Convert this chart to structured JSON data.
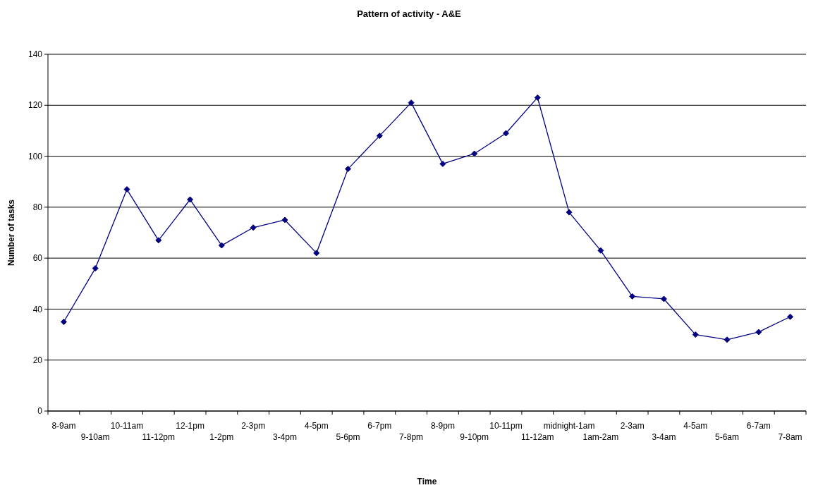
{
  "chart_data": {
    "type": "line",
    "title": "Pattern of activity - A&E",
    "xlabel": "Time",
    "ylabel": "Number of tasks",
    "categories": [
      "8-9am",
      "9-10am",
      "10-11am",
      "11-12pm",
      "12-1pm",
      "1-2pm",
      "2-3pm",
      "3-4pm",
      "4-5pm",
      "5-6pm",
      "6-7pm",
      "7-8pm",
      "8-9pm",
      "9-10pm",
      "10-11pm",
      "11-12am",
      "midnight-1am",
      "1am-2am",
      "2-3am",
      "3-4am",
      "4-5am",
      "5-6am",
      "6-7am",
      "7-8am"
    ],
    "series": [
      {
        "color": "#000080",
        "values": [
          35,
          56,
          87,
          67,
          83,
          65,
          72,
          75,
          62,
          95,
          108,
          121,
          97,
          101,
          109,
          123,
          78,
          63,
          45,
          44,
          30,
          28,
          31,
          37
        ]
      }
    ],
    "ylim": [
      0,
      140
    ],
    "yticks": [
      0,
      20,
      40,
      60,
      80,
      100,
      120,
      140
    ],
    "grid": "y",
    "marker": "diamond",
    "line_style": "solid"
  }
}
